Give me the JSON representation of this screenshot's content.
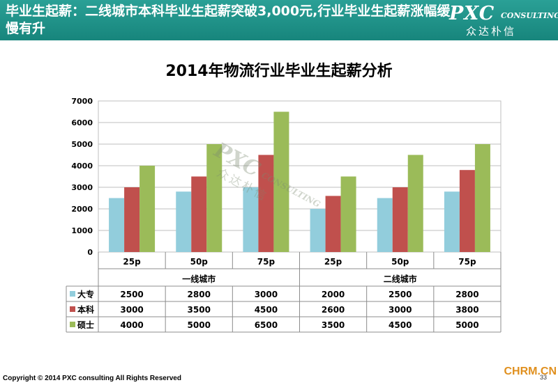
{
  "header": {
    "title": "毕业生起薪：二线城市本科毕业生起薪突破3,000元,行业毕业生起薪涨幅缓慢有升",
    "logo_main": "PXC",
    "logo_sub": "CONSULTING",
    "logo_cn": "众达朴信"
  },
  "chart_data": {
    "type": "bar",
    "title": "2014年物流行业毕业生起薪分析",
    "categories": [
      "25p",
      "50p",
      "75p",
      "25p",
      "50p",
      "75p"
    ],
    "groups": [
      {
        "label": "一线城市",
        "span": [
          0,
          2
        ]
      },
      {
        "label": "二线城市",
        "span": [
          3,
          5
        ]
      }
    ],
    "series": [
      {
        "name": "大专",
        "color": "#92cddc",
        "values": [
          2500,
          2800,
          3000,
          2000,
          2500,
          2800
        ]
      },
      {
        "name": "本科",
        "color": "#c0504d",
        "values": [
          3000,
          3500,
          4500,
          2600,
          3000,
          3800
        ]
      },
      {
        "name": "硕士",
        "color": "#9bbb59",
        "values": [
          4000,
          5000,
          6500,
          3500,
          4500,
          5000
        ]
      }
    ],
    "ylim": [
      0,
      7000
    ],
    "yticks": [
      0,
      1000,
      2000,
      3000,
      4000,
      5000,
      6000,
      7000
    ],
    "grid": true,
    "legend": "data-table"
  },
  "watermark": {
    "main": "PXC",
    "sub": "CONSULTING",
    "cn": "众达朴信"
  },
  "footer": {
    "copyright": "Copyright © 2014  PXC consulting All Rights Reserved",
    "page": "33",
    "site": "CHRM.CN"
  }
}
